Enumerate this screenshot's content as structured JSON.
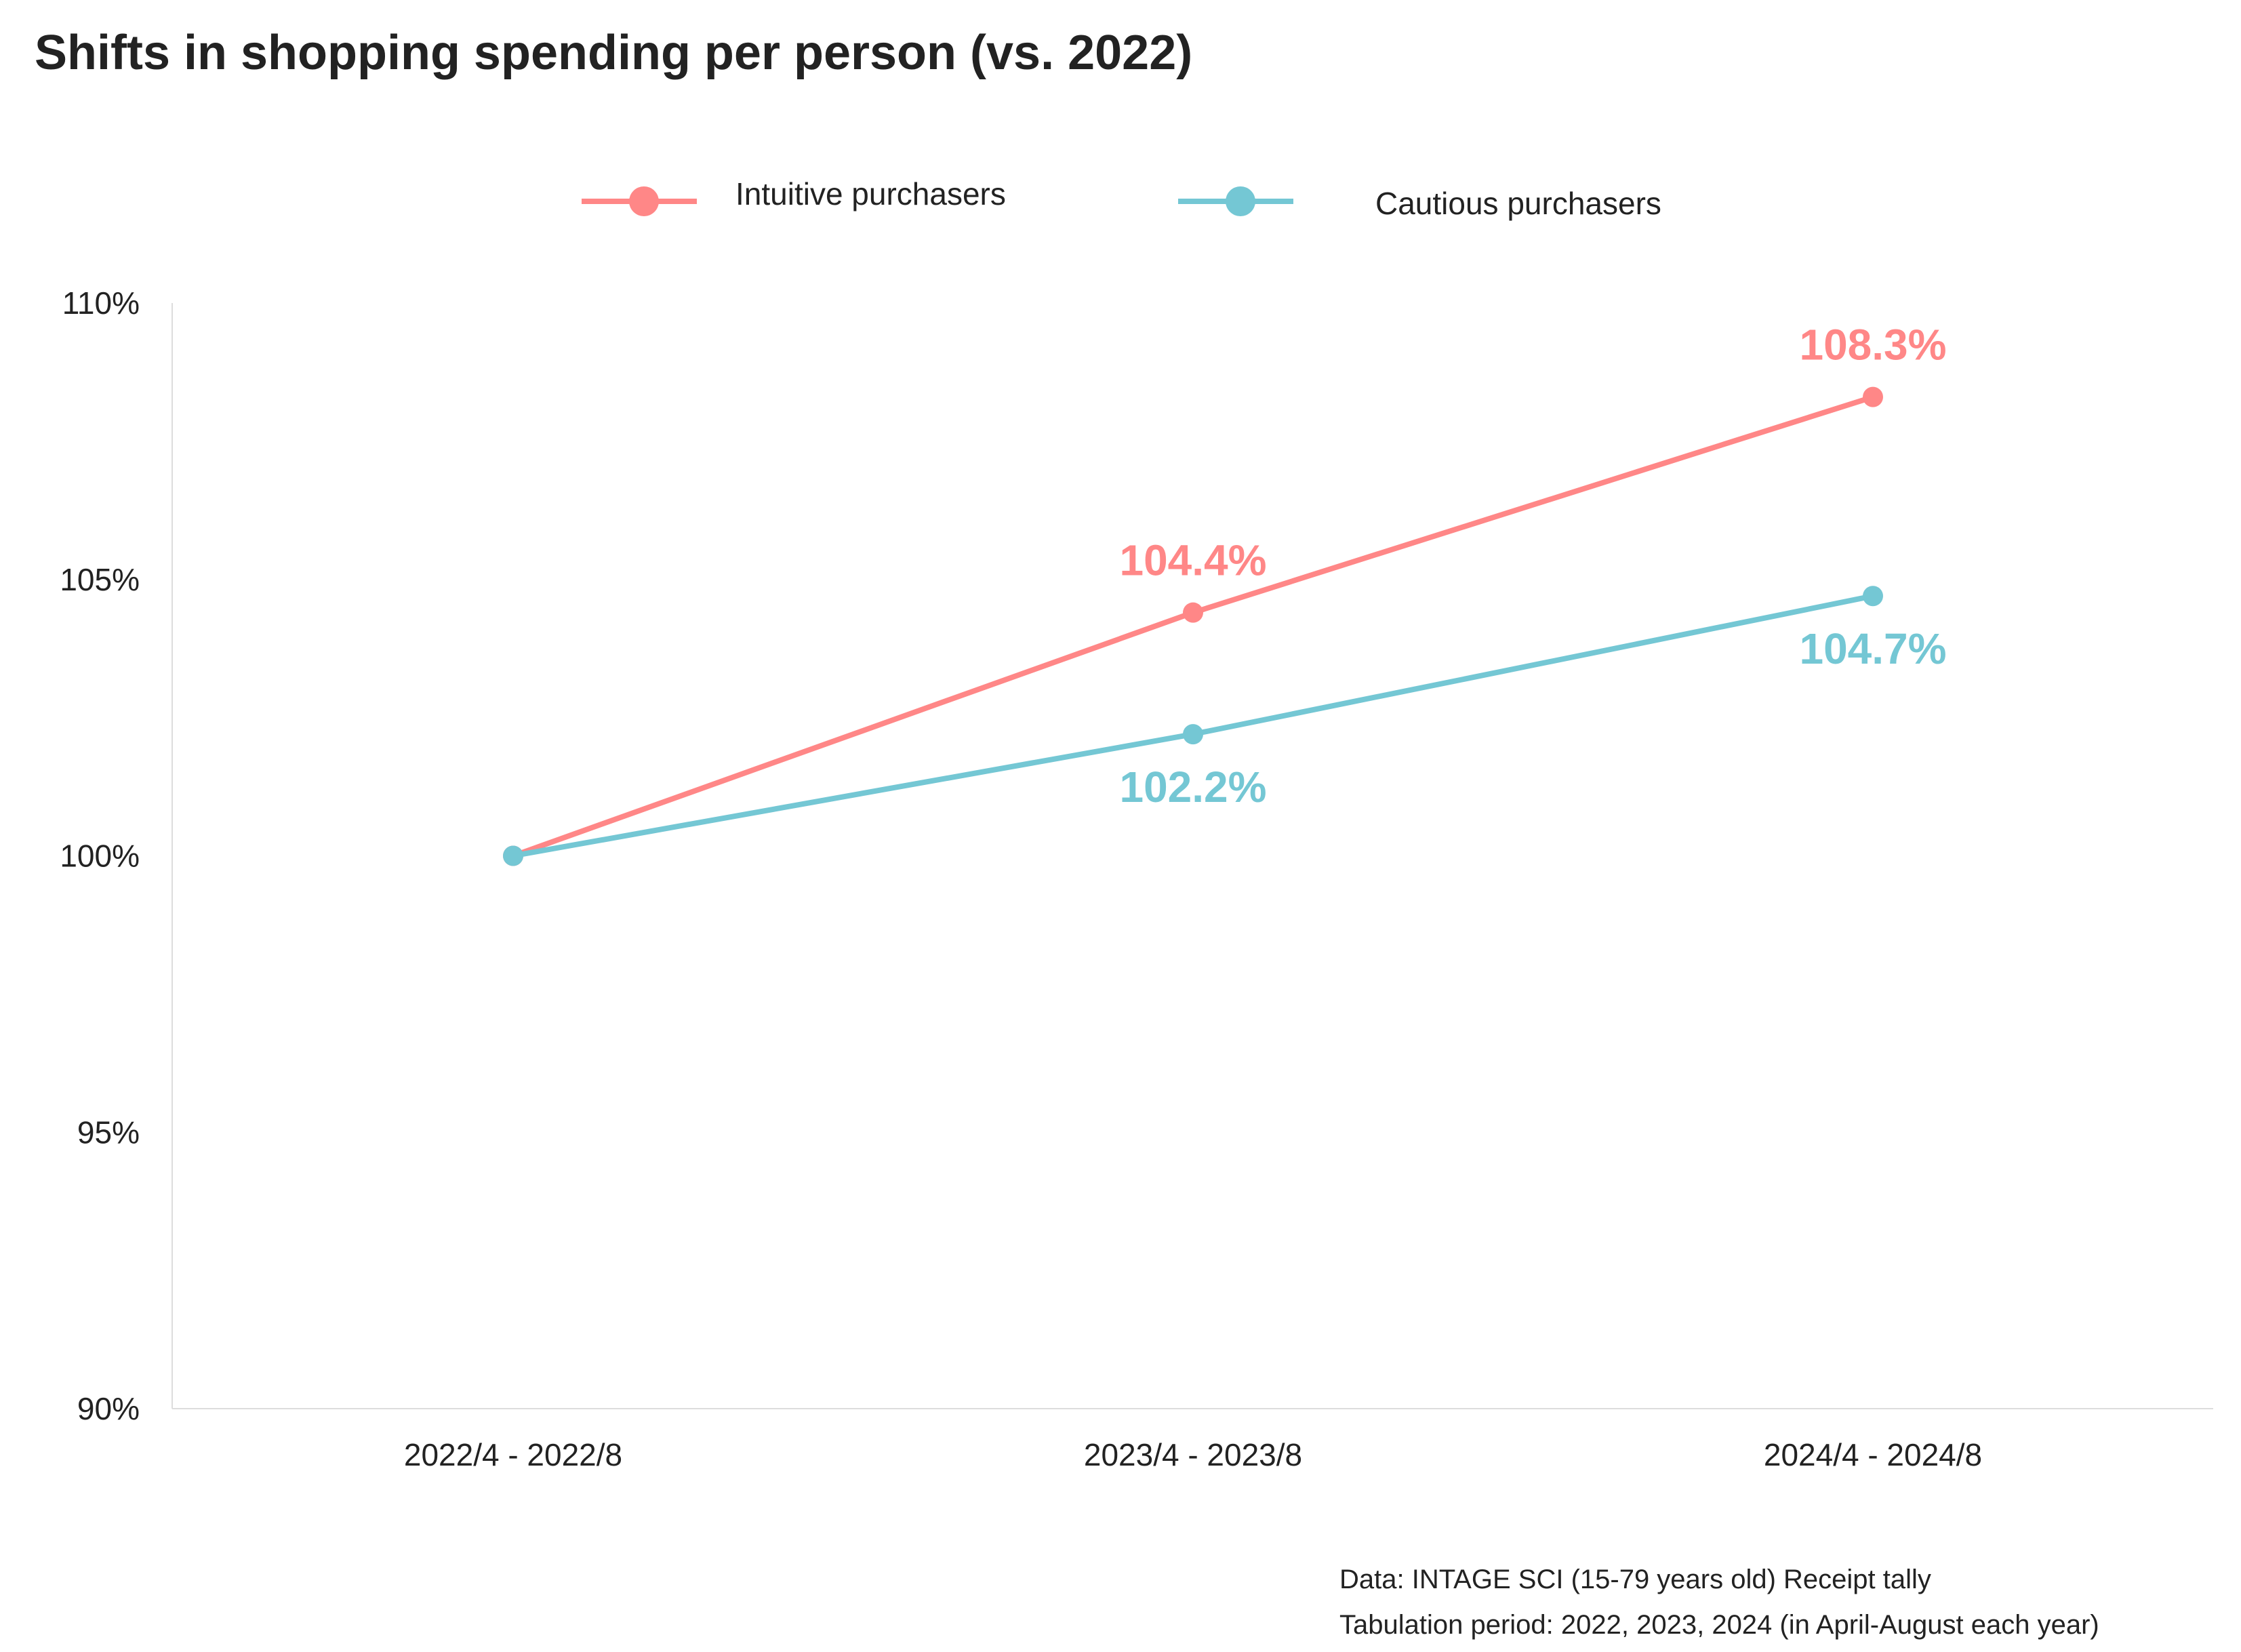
{
  "chart_data": {
    "type": "line",
    "title": "Shifts in shopping spending per person (vs. 2022)",
    "xlabel": "",
    "ylabel": "",
    "categories": [
      "2022/4 - 2022/8",
      "2023/4 - 2023/8",
      "2024/4 - 2024/8"
    ],
    "ylim": [
      90,
      110
    ],
    "yticks": [
      90,
      95,
      100,
      105,
      110
    ],
    "ytick_labels": [
      "90%",
      "95%",
      "100%",
      "105%",
      "110%"
    ],
    "grid": false,
    "legend_position": "top-center",
    "series": [
      {
        "name": "Intuitive purchasers",
        "color": "#FF8787",
        "values": [
          100,
          104.4,
          108.3
        ],
        "labels": [
          "",
          "104.4%",
          "108.3%"
        ],
        "label_position": "above"
      },
      {
        "name": "Cautious purchasers",
        "color": "#74C7D4",
        "values": [
          100,
          102.2,
          104.7
        ],
        "labels": [
          "",
          "102.2%",
          "104.7%"
        ],
        "label_position": "below"
      }
    ],
    "footnotes": [
      "Data: INTAGE SCI (15-79 years old) Receipt tally",
      "Tabulation period: 2022, 2023, 2024 (in April-August each year)"
    ]
  }
}
